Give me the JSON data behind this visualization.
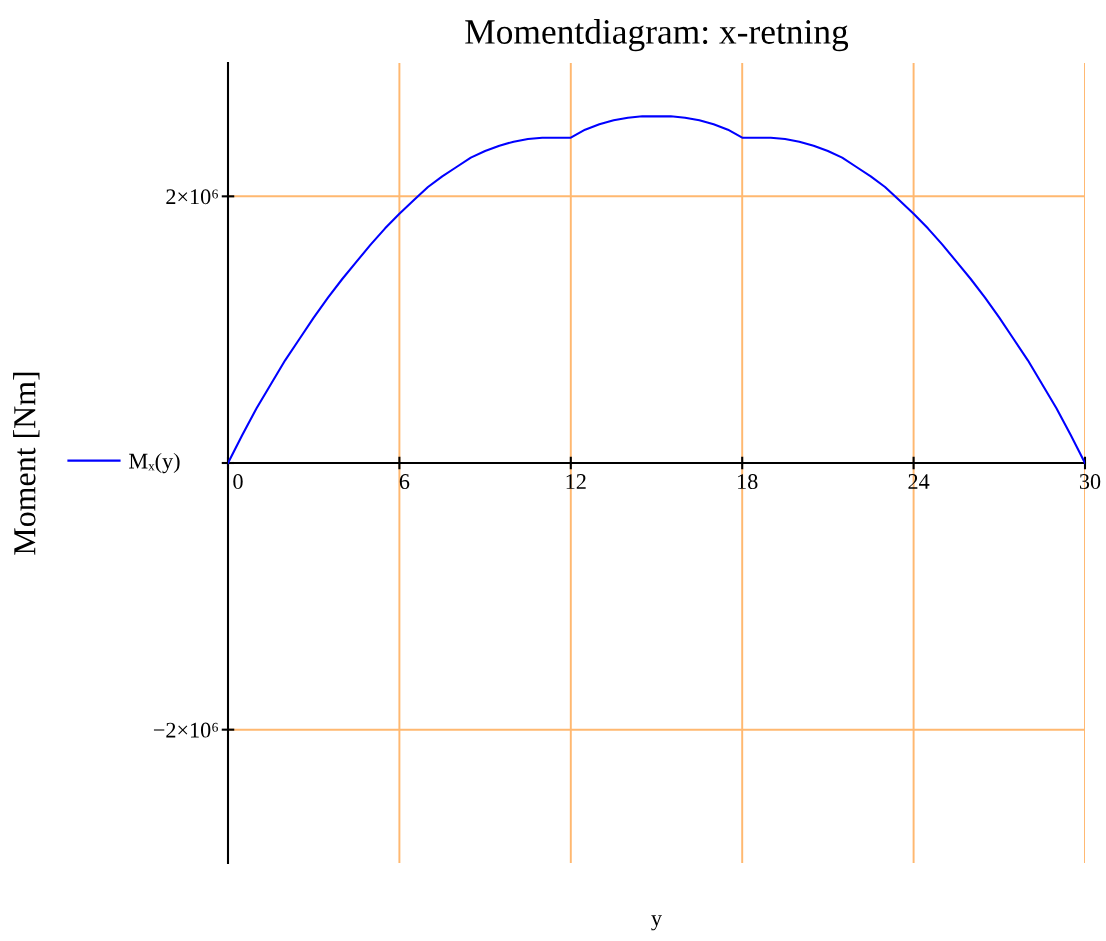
{
  "chart_data": {
    "type": "line",
    "title": "Momentdiagram: x-retning",
    "xlabel": "y",
    "ylabel": "Moment [Nm]",
    "x": [
      0,
      0.5,
      1,
      1.5,
      2,
      2.5,
      3,
      3.5,
      4,
      4.5,
      5,
      5.5,
      6,
      6.5,
      7,
      7.5,
      8,
      8.5,
      9,
      9.5,
      10,
      10.5,
      11,
      11.5,
      12,
      12.5,
      13,
      13.5,
      14,
      14.5,
      15,
      15.5,
      16,
      16.5,
      17,
      17.5,
      18,
      18.5,
      19,
      19.5,
      20,
      20.5,
      21,
      21.5,
      22,
      22.5,
      23,
      23.5,
      24,
      24.5,
      25,
      25.5,
      26,
      26.5,
      27,
      27.5,
      28,
      28.5,
      29,
      29.5,
      30
    ],
    "series": [
      {
        "name": "Mₓ(y)",
        "color": "#0000ff",
        "values": [
          0,
          210000,
          410000,
          590000,
          770000,
          930000,
          1090000,
          1240000,
          1380000,
          1510000,
          1640000,
          1760000,
          1870000,
          1970000,
          2070000,
          2150000,
          2220000,
          2290000,
          2340000,
          2380000,
          2410000,
          2430000,
          2440000,
          2440000,
          2440000,
          2500000,
          2540000,
          2570000,
          2590000,
          2600000,
          2600000,
          2600000,
          2590000,
          2570000,
          2540000,
          2500000,
          2440000,
          2440000,
          2440000,
          2430000,
          2410000,
          2380000,
          2340000,
          2290000,
          2220000,
          2150000,
          2070000,
          1970000,
          1870000,
          1760000,
          1640000,
          1510000,
          1380000,
          1240000,
          1090000,
          930000,
          770000,
          590000,
          410000,
          210000,
          0
        ]
      }
    ],
    "xlim": [
      0,
      30
    ],
    "xticks": [
      0,
      6,
      12,
      18,
      24,
      30
    ],
    "ylim": [
      -3000000,
      3000000
    ],
    "yticks": [
      {
        "value": -2000000,
        "label": "−2×10⁶"
      },
      {
        "value": 0,
        "label": null
      },
      {
        "value": 2000000,
        "label": "2×10⁶"
      }
    ],
    "grid": true,
    "legend": "left"
  }
}
